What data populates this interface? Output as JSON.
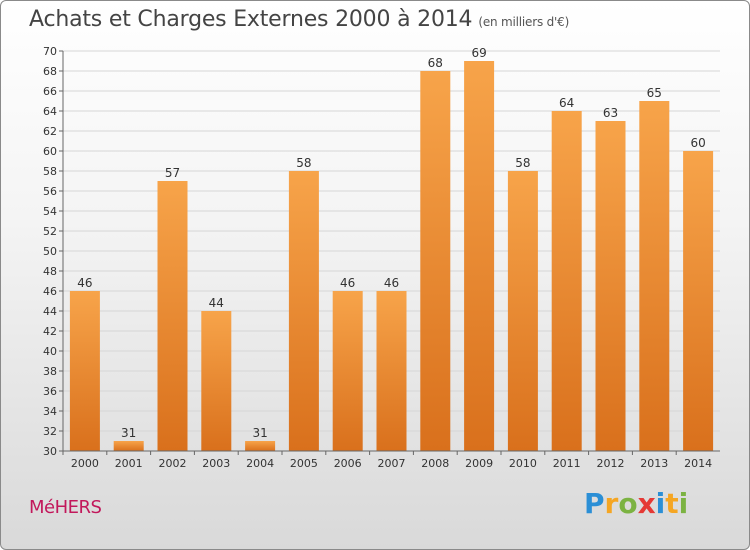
{
  "header": {
    "title": "Achats et Charges Externes 2000 à 2014",
    "subtitle": "(en milliers d'€)"
  },
  "footer": {
    "commune": "MéHERS",
    "logo_letters": [
      {
        "ch": "P",
        "color": "#2b8fd6"
      },
      {
        "ch": "r",
        "color": "#f5a623"
      },
      {
        "ch": "o",
        "color": "#7cb342"
      },
      {
        "ch": "x",
        "color": "#e53935"
      },
      {
        "ch": "i",
        "color": "#2b8fd6"
      },
      {
        "ch": "t",
        "color": "#f5a623"
      },
      {
        "ch": "i",
        "color": "#7cb342"
      }
    ]
  },
  "colors": {
    "bar_top": "#f7a44a",
    "bar_bottom": "#d9701c",
    "grid": "#d6d6d6",
    "commune": "#c2185b"
  },
  "chart_data": {
    "type": "bar",
    "title": "Achats et Charges Externes 2000 à 2014",
    "subtitle": "(en milliers d'€)",
    "categories": [
      "2000",
      "2001",
      "2002",
      "2003",
      "2004",
      "2005",
      "2006",
      "2007",
      "2008",
      "2009",
      "2010",
      "2011",
      "2012",
      "2013",
      "2014"
    ],
    "values": [
      46,
      31,
      57,
      44,
      31,
      58,
      46,
      46,
      68,
      69,
      58,
      64,
      63,
      65,
      60
    ],
    "ylim": [
      30,
      70
    ],
    "yticks": [
      30,
      32,
      34,
      36,
      38,
      40,
      42,
      44,
      46,
      48,
      50,
      52,
      54,
      56,
      58,
      60,
      62,
      64,
      66,
      68,
      70
    ],
    "grid": true,
    "data_labels": true
  }
}
